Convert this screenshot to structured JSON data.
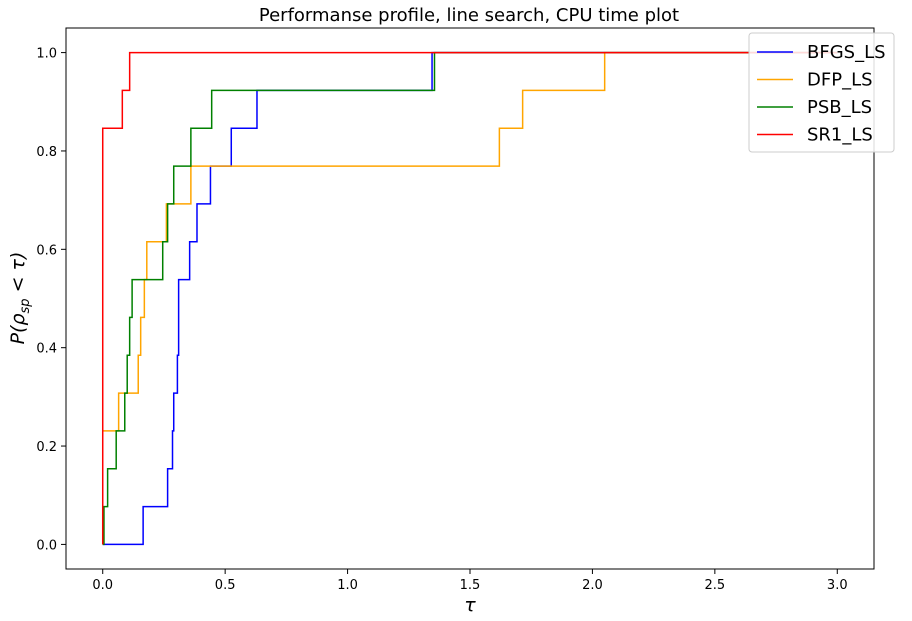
{
  "chart_data": {
    "type": "line",
    "step": true,
    "title": "Performanse profile, line search, CPU time plot",
    "xlabel": "τ",
    "ylabel": "P(ρ_sp < τ)",
    "xlim": [
      -0.15,
      3.15
    ],
    "ylim": [
      -0.05,
      1.05
    ],
    "xticks": [
      0.0,
      0.5,
      1.0,
      1.5,
      2.0,
      2.5,
      3.0
    ],
    "xtick_labels": [
      "0.0",
      "0.5",
      "1.0",
      "1.5",
      "2.0",
      "2.5",
      "3.0"
    ],
    "yticks": [
      0.0,
      0.2,
      0.4,
      0.6,
      0.8,
      1.0
    ],
    "ytick_labels": [
      "0.0",
      "0.2",
      "0.4",
      "0.6",
      "0.8",
      "1.0"
    ],
    "legend_position": "top-right",
    "grid": false,
    "x_end": 3.0,
    "series": [
      {
        "name": "BFGS_LS",
        "color": "#0000ff",
        "points": [
          [
            0.0,
            0.0
          ],
          [
            0.165,
            0.0769
          ],
          [
            0.265,
            0.1538
          ],
          [
            0.285,
            0.2308
          ],
          [
            0.29,
            0.3077
          ],
          [
            0.305,
            0.3846
          ],
          [
            0.31,
            0.5385
          ],
          [
            0.355,
            0.6154
          ],
          [
            0.385,
            0.6923
          ],
          [
            0.44,
            0.7692
          ],
          [
            0.525,
            0.8462
          ],
          [
            0.63,
            0.9231
          ],
          [
            1.345,
            1.0
          ]
        ]
      },
      {
        "name": "DFP_LS",
        "color": "#ffa500",
        "points": [
          [
            0.0,
            0.2308
          ],
          [
            0.065,
            0.3077
          ],
          [
            0.145,
            0.3846
          ],
          [
            0.155,
            0.4615
          ],
          [
            0.17,
            0.5385
          ],
          [
            0.18,
            0.6154
          ],
          [
            0.26,
            0.6923
          ],
          [
            0.36,
            0.7692
          ],
          [
            1.62,
            0.8462
          ],
          [
            1.715,
            0.9231
          ],
          [
            2.05,
            1.0
          ]
        ]
      },
      {
        "name": "PSB_LS",
        "color": "#008000",
        "points": [
          [
            0.0,
            0.0
          ],
          [
            0.005,
            0.0769
          ],
          [
            0.02,
            0.1538
          ],
          [
            0.055,
            0.2308
          ],
          [
            0.09,
            0.3077
          ],
          [
            0.1,
            0.3846
          ],
          [
            0.11,
            0.4615
          ],
          [
            0.12,
            0.5385
          ],
          [
            0.245,
            0.6154
          ],
          [
            0.265,
            0.6923
          ],
          [
            0.29,
            0.7692
          ],
          [
            0.36,
            0.8462
          ],
          [
            0.445,
            0.9231
          ],
          [
            1.355,
            1.0
          ]
        ]
      },
      {
        "name": "SR1_LS",
        "color": "#ff0000",
        "points": [
          [
            0.0,
            0.0
          ],
          [
            0.0,
            0.8462
          ],
          [
            0.08,
            0.9231
          ],
          [
            0.11,
            1.0
          ]
        ]
      }
    ]
  }
}
